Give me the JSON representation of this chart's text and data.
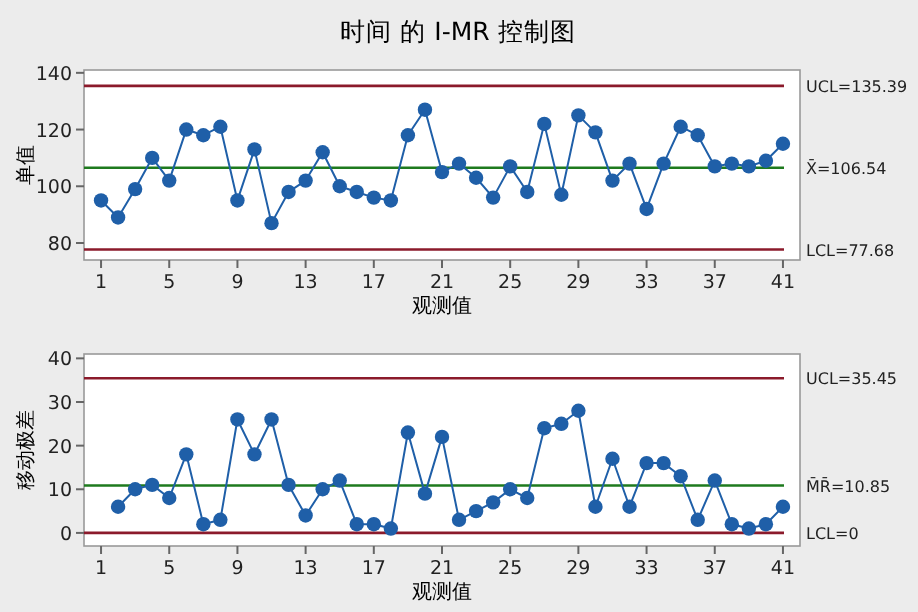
{
  "chart_data": [
    {
      "type": "line",
      "title": "时间 的 I-MR 控制图",
      "xlabel": "观测值",
      "ylabel": "单值",
      "marker": "circle",
      "line_style": "solid",
      "grid": false,
      "x": [
        1,
        2,
        3,
        4,
        5,
        6,
        7,
        8,
        9,
        10,
        11,
        12,
        13,
        14,
        15,
        16,
        17,
        18,
        19,
        20,
        21,
        22,
        23,
        24,
        25,
        26,
        27,
        28,
        29,
        30,
        31,
        32,
        33,
        34,
        35,
        36,
        37,
        38,
        39,
        40,
        41
      ],
      "series": [
        {
          "color": "#1f5fa8",
          "values": [
            95,
            89,
            99,
            110,
            102,
            120,
            118,
            121,
            95,
            113,
            87,
            98,
            102,
            112,
            100,
            98,
            96,
            95,
            118,
            127,
            105,
            108,
            103,
            96,
            107,
            98,
            122,
            97,
            125,
            119,
            102,
            108,
            92,
            108,
            121,
            118,
            107,
            108,
            107,
            109,
            115
          ]
        }
      ],
      "xlim": [
        0,
        42
      ],
      "ylim": [
        74,
        141
      ],
      "xticks": [
        1,
        5,
        9,
        13,
        17,
        21,
        25,
        29,
        33,
        37,
        41
      ],
      "yticks": [
        80,
        100,
        120,
        140
      ],
      "ref_lines": [
        {
          "axis": "y",
          "value": 135.39,
          "label": "UCL=135.39",
          "color": "#8b1a2b"
        },
        {
          "axis": "y",
          "value": 106.54,
          "label": "X̄=106.54",
          "color": "#1e7a1e"
        },
        {
          "axis": "y",
          "value": 77.68,
          "label": "LCL=77.68",
          "color": "#8b1a2b"
        }
      ]
    },
    {
      "type": "line",
      "xlabel": "观测值",
      "ylabel": "移动极差",
      "marker": "circle",
      "line_style": "solid",
      "grid": false,
      "series": [
        {
          "color": "#1f5fa8",
          "x": [
            2,
            3,
            4,
            5,
            6,
            7,
            8,
            9,
            10,
            11,
            12,
            13,
            14,
            15,
            16,
            17,
            18,
            19,
            20,
            21,
            22,
            23,
            24,
            25,
            26,
            27,
            28,
            29,
            30,
            31,
            32,
            33,
            34,
            35,
            36,
            37,
            38,
            39,
            40,
            41
          ],
          "values": [
            6,
            10,
            11,
            8,
            18,
            2,
            3,
            26,
            18,
            26,
            11,
            4,
            10,
            12,
            2,
            2,
            1,
            23,
            9,
            22,
            3,
            5,
            7,
            10,
            8,
            24,
            25,
            28,
            6,
            17,
            6,
            16,
            16,
            13,
            3,
            12,
            2,
            1,
            2,
            6
          ]
        }
      ],
      "xlim": [
        0,
        42
      ],
      "ylim": [
        -3,
        41
      ],
      "xticks": [
        1,
        5,
        9,
        13,
        17,
        21,
        25,
        29,
        33,
        37,
        41
      ],
      "yticks": [
        0,
        10,
        20,
        30,
        40
      ],
      "ref_lines": [
        {
          "axis": "y",
          "value": 35.45,
          "label": "UCL=35.45",
          "color": "#8b1a2b"
        },
        {
          "axis": "y",
          "value": 10.85,
          "label": "M̄R̄=10.85",
          "color": "#1e7a1e"
        },
        {
          "axis": "y",
          "value": 0,
          "label": "LCL=0",
          "color": "#8b1a2b"
        }
      ]
    }
  ]
}
